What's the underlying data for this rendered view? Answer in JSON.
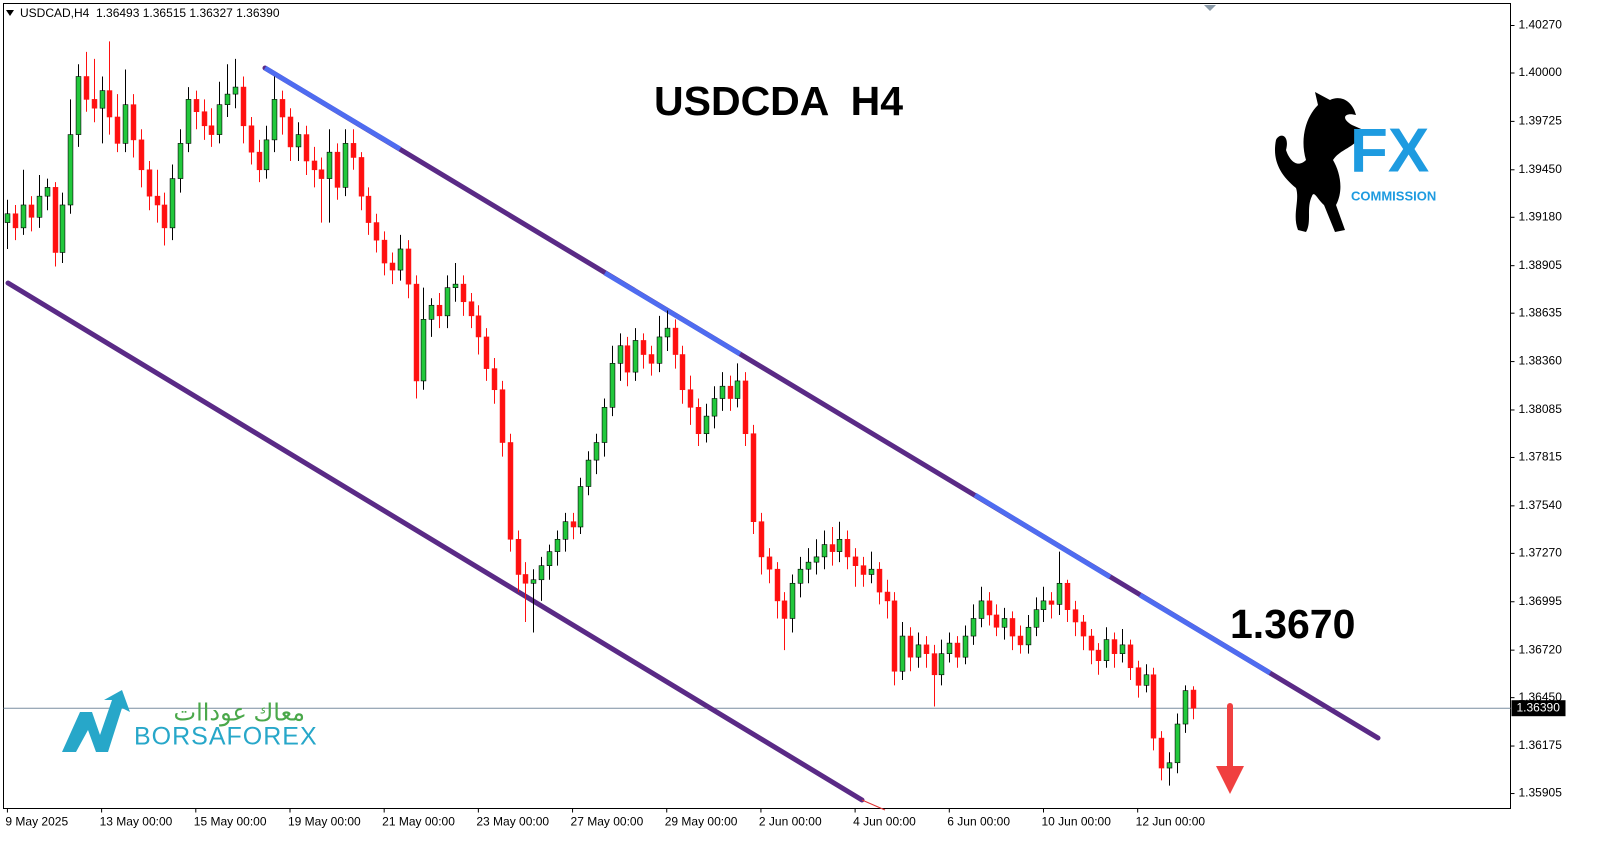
{
  "chart_data": {
    "type": "candlestick",
    "symbol_info": "USDCAD,H4  1.36493 1.36515 1.36327 1.36390",
    "title": "USDCDA  H4",
    "annotation": "1.3670",
    "up_color": "#22c83c",
    "down_color": "#ff1010",
    "last_price": {
      "value": 1.3639,
      "label": "1.36390"
    },
    "xlim": [
      -0.5,
      191.5
    ],
    "xticks": [
      {
        "value": 0,
        "label": "9 May 2025"
      },
      {
        "value": 12,
        "label": "13 May 00:00"
      },
      {
        "value": 24,
        "label": "15 May 00:00"
      },
      {
        "value": 36,
        "label": "19 May 00:00"
      },
      {
        "value": 48,
        "label": "21 May 00:00"
      },
      {
        "value": 60,
        "label": "23 May 00:00"
      },
      {
        "value": 72,
        "label": "27 May 00:00"
      },
      {
        "value": 84,
        "label": "29 May 00:00"
      },
      {
        "value": 96,
        "label": "2 Jun 00:00"
      },
      {
        "value": 108,
        "label": "4 Jun 00:00"
      },
      {
        "value": 120,
        "label": "6 Jun 00:00"
      },
      {
        "value": 132,
        "label": "10 Jun 00:00"
      },
      {
        "value": 144,
        "label": "12 Jun 00:00"
      }
    ],
    "ylim": [
      1.3582,
      1.40395
    ],
    "yticks": [
      {
        "value": 1.4027,
        "label": "1.40270"
      },
      {
        "value": 1.4,
        "label": "1.40000"
      },
      {
        "value": 1.39725,
        "label": "1.39725"
      },
      {
        "value": 1.3945,
        "label": "1.39450"
      },
      {
        "value": 1.3918,
        "label": "1.39180"
      },
      {
        "value": 1.38905,
        "label": "1.38905"
      },
      {
        "value": 1.38635,
        "label": "1.38635"
      },
      {
        "value": 1.3836,
        "label": "1.38360"
      },
      {
        "value": 1.38085,
        "label": "1.38085"
      },
      {
        "value": 1.37815,
        "label": "1.37815"
      },
      {
        "value": 1.3754,
        "label": "1.37540"
      },
      {
        "value": 1.3727,
        "label": "1.37270"
      },
      {
        "value": 1.36995,
        "label": "1.36995"
      },
      {
        "value": 1.3672,
        "label": "1.36720"
      },
      {
        "value": 1.3645,
        "label": "1.36450"
      },
      {
        "value": 1.36175,
        "label": "1.36175"
      },
      {
        "value": 1.35905,
        "label": "1.35905"
      }
    ],
    "candles": [
      [
        1.3915,
        1.3928,
        1.39,
        1.392
      ],
      [
        1.392,
        1.3925,
        1.3905,
        1.3912
      ],
      [
        1.3912,
        1.3945,
        1.3908,
        1.3925
      ],
      [
        1.3925,
        1.393,
        1.391,
        1.3918
      ],
      [
        1.3918,
        1.3942,
        1.3912,
        1.393
      ],
      [
        1.393,
        1.394,
        1.3922,
        1.3935
      ],
      [
        1.3935,
        1.3938,
        1.389,
        1.3898
      ],
      [
        1.3898,
        1.3932,
        1.3892,
        1.3925
      ],
      [
        1.3925,
        1.3985,
        1.392,
        1.3965
      ],
      [
        1.3965,
        1.4005,
        1.3958,
        1.3998
      ],
      [
        1.3998,
        1.4012,
        1.3978,
        1.3985
      ],
      [
        1.3985,
        1.4008,
        1.3972,
        1.398
      ],
      [
        1.398,
        1.3998,
        1.396,
        1.399
      ],
      [
        1.399,
        1.4018,
        1.3965,
        1.3975
      ],
      [
        1.3975,
        1.3988,
        1.3955,
        1.396
      ],
      [
        1.396,
        1.4002,
        1.3955,
        1.3982
      ],
      [
        1.3982,
        1.3988,
        1.3952,
        1.3962
      ],
      [
        1.3962,
        1.3968,
        1.3935,
        1.3945
      ],
      [
        1.3945,
        1.395,
        1.3922,
        1.393
      ],
      [
        1.393,
        1.3945,
        1.3915,
        1.3925
      ],
      [
        1.3925,
        1.3932,
        1.3902,
        1.3912
      ],
      [
        1.3912,
        1.3948,
        1.3905,
        1.394
      ],
      [
        1.394,
        1.3968,
        1.3932,
        1.396
      ],
      [
        1.396,
        1.3992,
        1.3955,
        1.3985
      ],
      [
        1.3985,
        1.399,
        1.3968,
        1.3978
      ],
      [
        1.3978,
        1.3985,
        1.3962,
        1.397
      ],
      [
        1.397,
        1.398,
        1.3958,
        1.3965
      ],
      [
        1.3965,
        1.3995,
        1.396,
        1.3982
      ],
      [
        1.3982,
        1.4005,
        1.3975,
        1.3988
      ],
      [
        1.3988,
        1.4008,
        1.398,
        1.3992
      ],
      [
        1.3992,
        1.3998,
        1.396,
        1.397
      ],
      [
        1.397,
        1.3975,
        1.3948,
        1.3955
      ],
      [
        1.3955,
        1.3962,
        1.3938,
        1.3945
      ],
      [
        1.3945,
        1.397,
        1.394,
        1.3962
      ],
      [
        1.3962,
        1.3998,
        1.3955,
        1.3985
      ],
      [
        1.3985,
        1.399,
        1.3965,
        1.3975
      ],
      [
        1.3975,
        1.398,
        1.395,
        1.3958
      ],
      [
        1.3958,
        1.3972,
        1.395,
        1.3965
      ],
      [
        1.3965,
        1.397,
        1.3942,
        1.395
      ],
      [
        1.395,
        1.3958,
        1.3935,
        1.3945
      ],
      [
        1.3945,
        1.3952,
        1.3915,
        1.394
      ],
      [
        1.394,
        1.3968,
        1.3915,
        1.3955
      ],
      [
        1.3955,
        1.396,
        1.3928,
        1.3935
      ],
      [
        1.3935,
        1.3968,
        1.393,
        1.396
      ],
      [
        1.396,
        1.3968,
        1.3945,
        1.3952
      ],
      [
        1.3952,
        1.3955,
        1.3922,
        1.393
      ],
      [
        1.393,
        1.3935,
        1.3908,
        1.3915
      ],
      [
        1.3915,
        1.392,
        1.3898,
        1.3905
      ],
      [
        1.3905,
        1.391,
        1.3885,
        1.3892
      ],
      [
        1.3892,
        1.3898,
        1.388,
        1.3888
      ],
      [
        1.3888,
        1.3908,
        1.3882,
        1.39
      ],
      [
        1.39,
        1.3905,
        1.3872,
        1.388
      ],
      [
        1.388,
        1.3885,
        1.3815,
        1.3825
      ],
      [
        1.3825,
        1.3878,
        1.382,
        1.386
      ],
      [
        1.386,
        1.3872,
        1.385,
        1.3868
      ],
      [
        1.3868,
        1.3875,
        1.3855,
        1.3862
      ],
      [
        1.3862,
        1.3885,
        1.3855,
        1.3878
      ],
      [
        1.3878,
        1.3892,
        1.387,
        1.388
      ],
      [
        1.388,
        1.3885,
        1.3862,
        1.387
      ],
      [
        1.387,
        1.3875,
        1.3855,
        1.3862
      ],
      [
        1.3862,
        1.3868,
        1.384,
        1.385
      ],
      [
        1.385,
        1.3855,
        1.3825,
        1.3832
      ],
      [
        1.3832,
        1.3838,
        1.3812,
        1.382
      ],
      [
        1.382,
        1.3825,
        1.3782,
        1.379
      ],
      [
        1.379,
        1.3795,
        1.3728,
        1.3735
      ],
      [
        1.3735,
        1.374,
        1.3705,
        1.3715
      ],
      [
        1.3715,
        1.3722,
        1.3688,
        1.371
      ],
      [
        1.371,
        1.3718,
        1.3682,
        1.3712
      ],
      [
        1.3712,
        1.3725,
        1.37,
        1.372
      ],
      [
        1.372,
        1.3732,
        1.3712,
        1.3728
      ],
      [
        1.3728,
        1.374,
        1.372,
        1.3735
      ],
      [
        1.3735,
        1.375,
        1.3728,
        1.3745
      ],
      [
        1.3745,
        1.375,
        1.3735,
        1.3742
      ],
      [
        1.3742,
        1.377,
        1.3738,
        1.3765
      ],
      [
        1.3765,
        1.3785,
        1.376,
        1.378
      ],
      [
        1.378,
        1.3795,
        1.3772,
        1.379
      ],
      [
        1.379,
        1.3815,
        1.3782,
        1.381
      ],
      [
        1.381,
        1.3845,
        1.3805,
        1.3835
      ],
      [
        1.3835,
        1.3852,
        1.3825,
        1.3845
      ],
      [
        1.3845,
        1.385,
        1.3822,
        1.383
      ],
      [
        1.383,
        1.3855,
        1.3825,
        1.3848
      ],
      [
        1.3848,
        1.3852,
        1.3832,
        1.384
      ],
      [
        1.384,
        1.3845,
        1.3828,
        1.3835
      ],
      [
        1.3835,
        1.3862,
        1.383,
        1.385
      ],
      [
        1.385,
        1.3865,
        1.3842,
        1.3855
      ],
      [
        1.3855,
        1.386,
        1.3832,
        1.384
      ],
      [
        1.384,
        1.3845,
        1.3812,
        1.382
      ],
      [
        1.382,
        1.3828,
        1.38,
        1.381
      ],
      [
        1.381,
        1.3815,
        1.3788,
        1.3795
      ],
      [
        1.3795,
        1.3812,
        1.379,
        1.3805
      ],
      [
        1.3805,
        1.3822,
        1.3798,
        1.3815
      ],
      [
        1.3815,
        1.383,
        1.3808,
        1.3822
      ],
      [
        1.3822,
        1.3828,
        1.3808,
        1.3815
      ],
      [
        1.3815,
        1.3835,
        1.381,
        1.3825
      ],
      [
        1.3825,
        1.383,
        1.3788,
        1.3795
      ],
      [
        1.3795,
        1.38,
        1.3738,
        1.3745
      ],
      [
        1.3745,
        1.375,
        1.3715,
        1.3725
      ],
      [
        1.3725,
        1.373,
        1.371,
        1.3718
      ],
      [
        1.3718,
        1.3722,
        1.369,
        1.37
      ],
      [
        1.37,
        1.3705,
        1.3672,
        1.369
      ],
      [
        1.369,
        1.3715,
        1.3682,
        1.371
      ],
      [
        1.371,
        1.3725,
        1.3702,
        1.3718
      ],
      [
        1.3718,
        1.373,
        1.371,
        1.3722
      ],
      [
        1.3722,
        1.3735,
        1.3715,
        1.3725
      ],
      [
        1.3725,
        1.374,
        1.3718,
        1.3732
      ],
      [
        1.3732,
        1.3742,
        1.372,
        1.3728
      ],
      [
        1.3728,
        1.3745,
        1.3722,
        1.3735
      ],
      [
        1.3735,
        1.374,
        1.3718,
        1.3725
      ],
      [
        1.3725,
        1.373,
        1.3708,
        1.372
      ],
      [
        1.372,
        1.3725,
        1.3708,
        1.3715
      ],
      [
        1.3715,
        1.3728,
        1.371,
        1.3718
      ],
      [
        1.3718,
        1.3722,
        1.3698,
        1.3705
      ],
      [
        1.3705,
        1.3712,
        1.369,
        1.37
      ],
      [
        1.37,
        1.3705,
        1.3652,
        1.366
      ],
      [
        1.366,
        1.3688,
        1.3655,
        1.368
      ],
      [
        1.368,
        1.3685,
        1.366,
        1.3668
      ],
      [
        1.3668,
        1.3682,
        1.3662,
        1.3675
      ],
      [
        1.3675,
        1.368,
        1.3662,
        1.367
      ],
      [
        1.367,
        1.3675,
        1.364,
        1.3658
      ],
      [
        1.3658,
        1.3678,
        1.3652,
        1.367
      ],
      [
        1.367,
        1.3682,
        1.3665,
        1.3676
      ],
      [
        1.3676,
        1.368,
        1.3662,
        1.3668
      ],
      [
        1.3668,
        1.3686,
        1.3664,
        1.368
      ],
      [
        1.368,
        1.3698,
        1.3675,
        1.369
      ],
      [
        1.369,
        1.3708,
        1.3685,
        1.37
      ],
      [
        1.37,
        1.3705,
        1.3686,
        1.3692
      ],
      [
        1.3692,
        1.3698,
        1.368,
        1.3685
      ],
      [
        1.3685,
        1.3696,
        1.3678,
        1.369
      ],
      [
        1.369,
        1.3694,
        1.3672,
        1.368
      ],
      [
        1.368,
        1.3686,
        1.367,
        1.3675
      ],
      [
        1.3675,
        1.3692,
        1.367,
        1.3685
      ],
      [
        1.3685,
        1.3702,
        1.368,
        1.3695
      ],
      [
        1.3695,
        1.3708,
        1.3688,
        1.37
      ],
      [
        1.37,
        1.3705,
        1.369,
        1.3698
      ],
      [
        1.3698,
        1.3728,
        1.3692,
        1.371
      ],
      [
        1.371,
        1.3712,
        1.3688,
        1.3695
      ],
      [
        1.3695,
        1.37,
        1.368,
        1.3688
      ],
      [
        1.3688,
        1.3692,
        1.3672,
        1.368
      ],
      [
        1.368,
        1.3684,
        1.3664,
        1.3672
      ],
      [
        1.3672,
        1.3676,
        1.3658,
        1.3666
      ],
      [
        1.3666,
        1.3685,
        1.3662,
        1.3678
      ],
      [
        1.3678,
        1.3682,
        1.3662,
        1.367
      ],
      [
        1.367,
        1.3684,
        1.3665,
        1.3675
      ],
      [
        1.3675,
        1.3678,
        1.3655,
        1.3662
      ],
      [
        1.3662,
        1.3666,
        1.3645,
        1.3652
      ],
      [
        1.3652,
        1.3664,
        1.3648,
        1.3658
      ],
      [
        1.3658,
        1.3662,
        1.3615,
        1.3622
      ],
      [
        1.3622,
        1.3626,
        1.3598,
        1.3605
      ],
      [
        1.3605,
        1.3614,
        1.3595,
        1.3608
      ],
      [
        1.3608,
        1.3636,
        1.3602,
        1.363
      ],
      [
        1.363,
        1.3652,
        1.3625,
        1.3649
      ],
      [
        1.36493,
        1.36515,
        1.36327,
        1.3639
      ]
    ]
  },
  "logos": {
    "fx": "FX",
    "commission": "COMMISSION",
    "borsa": "BORSAFOREX",
    "arabic": "معاك عوداات"
  }
}
